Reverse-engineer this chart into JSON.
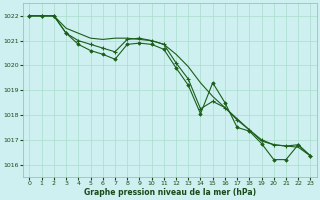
{
  "background_color": "#cff0f0",
  "grid_color": "#aaddcc",
  "line_color": "#1a5e1a",
  "xlabel": "Graphe pression niveau de la mer (hPa)",
  "ylim": [
    1015.5,
    1022.5
  ],
  "xlim": [
    -0.5,
    23.5
  ],
  "yticks": [
    1016,
    1017,
    1018,
    1019,
    1020,
    1021,
    1022
  ],
  "xticks": [
    0,
    1,
    2,
    3,
    4,
    5,
    6,
    7,
    8,
    9,
    10,
    11,
    12,
    13,
    14,
    15,
    16,
    17,
    18,
    19,
    20,
    21,
    22,
    23
  ],
  "series1": [
    1022.0,
    1022.0,
    1022.0,
    1021.5,
    1021.3,
    1021.1,
    1021.05,
    1021.1,
    1021.1,
    1021.05,
    1021.0,
    1020.85,
    1020.45,
    1019.95,
    1019.3,
    1018.75,
    1018.3,
    1017.85,
    1017.4,
    1016.95,
    1016.8,
    1016.75,
    1016.7,
    1016.35
  ],
  "series2": [
    1022.0,
    1022.0,
    1022.0,
    1021.3,
    1021.0,
    1020.85,
    1020.7,
    1020.55,
    1021.05,
    1021.1,
    1021.0,
    1020.85,
    1020.1,
    1019.45,
    1018.25,
    1018.55,
    1018.3,
    1017.8,
    1017.4,
    1017.0,
    1016.8,
    1016.75,
    1016.8,
    1016.35
  ],
  "series3": [
    1022.0,
    1022.0,
    1022.0,
    1021.3,
    1020.85,
    1020.6,
    1020.45,
    1020.25,
    1020.85,
    1020.9,
    1020.85,
    1020.65,
    1019.9,
    1019.2,
    1018.05,
    1019.3,
    1018.5,
    1017.5,
    1017.35,
    1016.85,
    1016.2,
    1016.2,
    1016.8,
    1016.35
  ]
}
